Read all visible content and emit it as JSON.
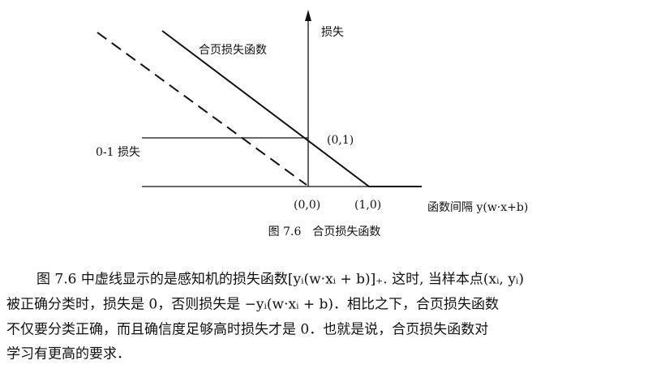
{
  "figure": {
    "y_axis_label": "损失",
    "hinge_label": "合页损失函数",
    "point_01": "(0,1)",
    "zero_one_label": "0-1 损失",
    "point_00": "(0,0)",
    "point_10": "(1,0)",
    "x_axis_label": "函数间隔 y(w·x+b)",
    "caption": "图 7.6　合页损失函数"
  },
  "paragraph": {
    "lines": [
      "图 7.6 中虚线显示的是感知机的损失函数[yᵢ(w·xᵢ + b)]₊. 这时, 当样本点(xᵢ, yᵢ)",
      "被正确分类时，损失是 0，否则损失是 −yᵢ(w·xᵢ + b)．相比之下，合页损失函数",
      "不仅要分类正确，而且确信度足够高时损失才是 0．也就是说，合页损失函数对",
      "学习有更高的要求．"
    ]
  }
}
